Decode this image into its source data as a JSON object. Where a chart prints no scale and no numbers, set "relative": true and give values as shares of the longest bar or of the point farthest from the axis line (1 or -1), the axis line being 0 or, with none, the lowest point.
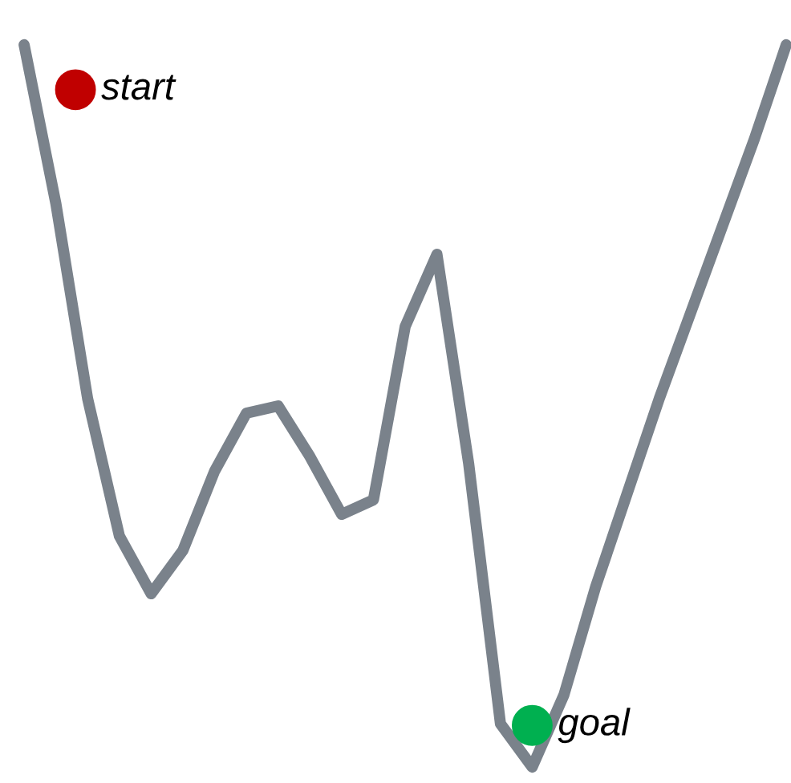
{
  "chart_data": {
    "type": "line",
    "relative": true,
    "marker": "none",
    "line_style": "solid",
    "categories": [
      null,
      null,
      null,
      null,
      null,
      null,
      null,
      null,
      null,
      null,
      null,
      null,
      null,
      null,
      null,
      null,
      null,
      null,
      null,
      null,
      null,
      null,
      null,
      null,
      null
    ],
    "series": [
      {
        "color": "#7a828b",
        "values": [
          1.0,
          0.78,
          0.51,
          0.32,
          0.24,
          0.3,
          0.41,
          0.49,
          0.5,
          0.43,
          0.35,
          0.37,
          0.61,
          0.71,
          0.42,
          0.06,
          0.0,
          0.1,
          0.25,
          0.38,
          0.51,
          0.63,
          0.75,
          0.87,
          1.0
        ]
      }
    ],
    "annotations": [
      "start",
      "goal"
    ]
  }
}
